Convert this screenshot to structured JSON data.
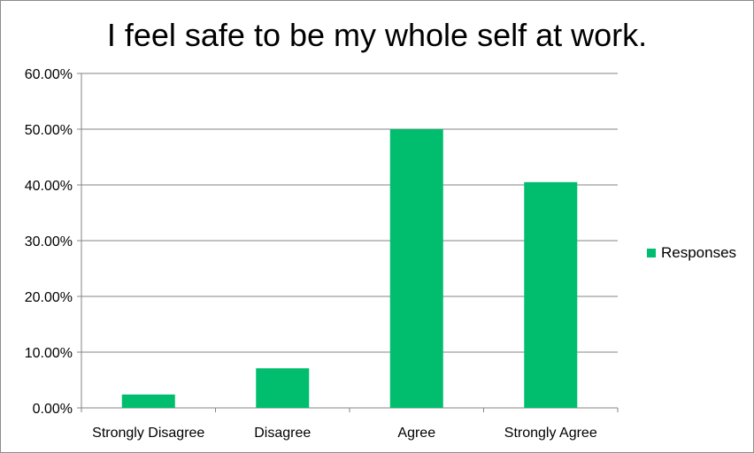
{
  "chart_data": {
    "type": "bar",
    "title": "I feel safe to be my whole self at work.",
    "xlabel": "",
    "ylabel": "",
    "categories": [
      "Strongly Disagree",
      "Disagree",
      "Agree",
      "Strongly Agree"
    ],
    "series": [
      {
        "name": "Responses",
        "values": [
          0.024,
          0.071,
          0.5,
          0.405
        ],
        "color": "#00be6e"
      }
    ],
    "ylim": [
      0,
      0.6
    ],
    "yticks": [
      0,
      0.1,
      0.2,
      0.3,
      0.4,
      0.5,
      0.6
    ],
    "ytick_labels": [
      "0.00%",
      "10.00%",
      "20.00%",
      "30.00%",
      "40.00%",
      "50.00%",
      "60.00%"
    ],
    "grid": true,
    "legend_position": "right"
  }
}
